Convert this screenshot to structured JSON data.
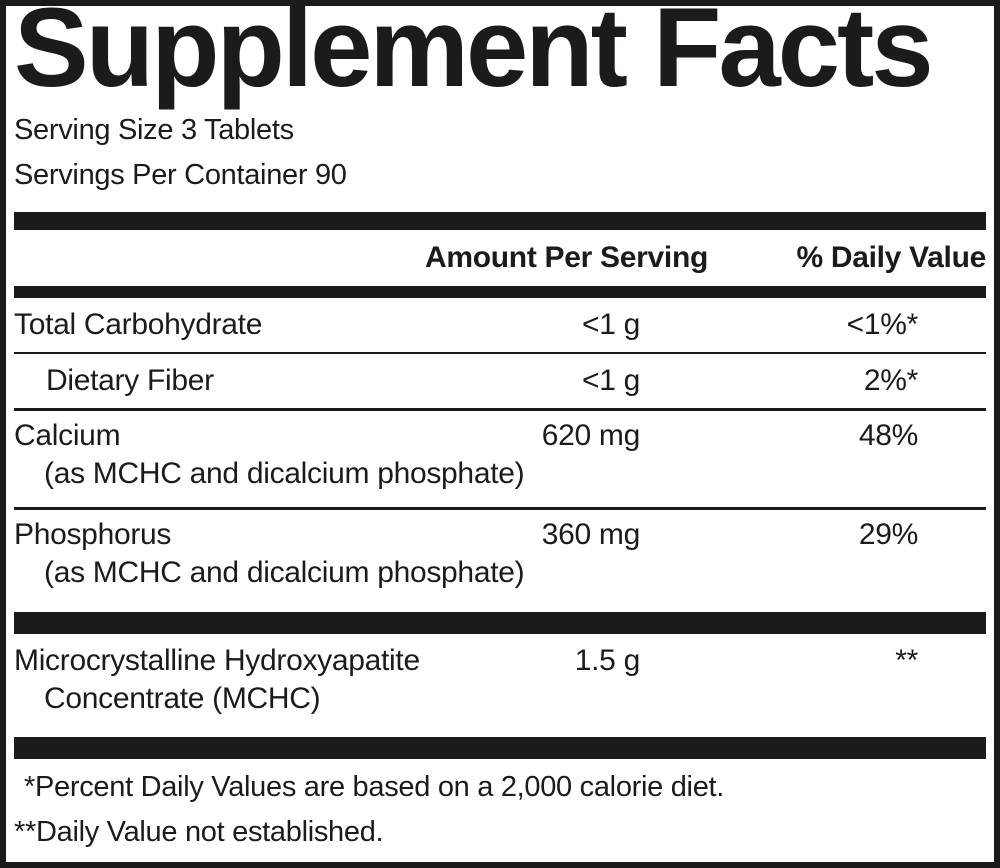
{
  "label": {
    "title": "Supplement Facts",
    "serving_size": "Serving Size 3 Tablets",
    "servings_per_container": "Servings Per Container 90",
    "columns": {
      "amount": "Amount Per Serving",
      "daily_value": "% Daily Value"
    },
    "main_rows": [
      {
        "name": "Total Carbohydrate",
        "indent": false,
        "sub": null,
        "amount": "<1 g",
        "dv": "<1%*"
      },
      {
        "name": "Dietary Fiber",
        "indent": true,
        "sub": null,
        "amount": "<1 g",
        "dv": "2%*"
      },
      {
        "name": "Calcium",
        "indent": false,
        "sub": "(as MCHC and dicalcium phosphate)",
        "amount": "620 mg",
        "dv": "48%"
      },
      {
        "name": "Phosphorus",
        "indent": false,
        "sub": "(as MCHC and dicalcium phosphate)",
        "amount": "360 mg",
        "dv": "29%"
      }
    ],
    "other_rows": [
      {
        "name": "Microcrystalline Hydroxyapatite",
        "indent": false,
        "sub": "Concentrate (MCHC)",
        "amount": "1.5 g",
        "dv": "**"
      }
    ],
    "footnotes": [
      "*Percent Daily Values are based on a 2,000 calorie diet.",
      "**Daily Value not established."
    ],
    "colors": {
      "ink": "#1d1b19",
      "background": "#ffffff"
    }
  }
}
